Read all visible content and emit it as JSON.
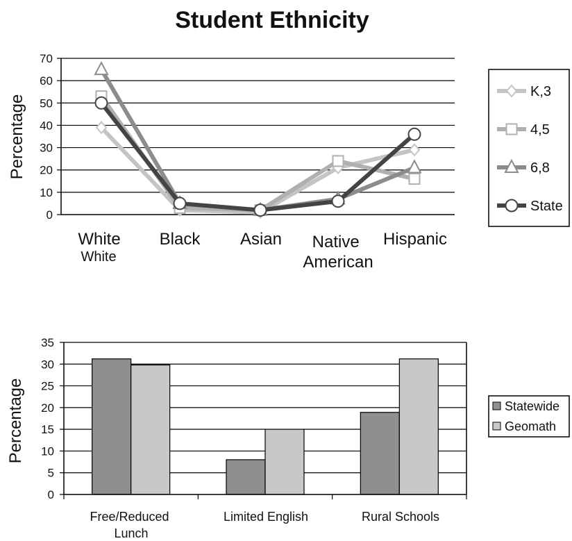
{
  "title": "Student Ethnicity",
  "chart_data": [
    {
      "type": "line",
      "ylabel": "Percentage",
      "ylim": [
        0,
        70
      ],
      "yticks": [
        "0",
        "10",
        "20",
        "30",
        "40",
        "50",
        "60",
        "70"
      ],
      "categories": [
        "White",
        "Black",
        "Asian",
        "Native American",
        "Hispanic"
      ],
      "category_extra_label": "White",
      "legend": "right",
      "grid": true,
      "series": [
        {
          "name": "K,3",
          "color": "#c4c4c4",
          "marker": "diamond",
          "values": [
            39,
            2,
            1,
            21,
            29
          ]
        },
        {
          "name": "4,5",
          "color": "#b0b0b0",
          "marker": "square",
          "values": [
            53,
            3,
            2,
            24,
            16
          ]
        },
        {
          "name": "6,8",
          "color": "#8c8c8c",
          "marker": "triangle",
          "values": [
            65,
            5,
            2,
            7,
            21
          ]
        },
        {
          "name": "State",
          "color": "#444444",
          "marker": "circle",
          "values": [
            50,
            5,
            2,
            6,
            36
          ]
        }
      ]
    },
    {
      "type": "bar",
      "ylabel": "Percentage",
      "ylim": [
        0,
        35
      ],
      "yticks": [
        "0",
        "5",
        "10",
        "15",
        "20",
        "25",
        "30",
        "35"
      ],
      "categories": [
        "Free/Reduced Lunch",
        "Limited English",
        "Rural Schools"
      ],
      "legend": "right",
      "grid": true,
      "series": [
        {
          "name": "Statewide",
          "color": "#8f8f8f",
          "values": [
            31.2,
            8,
            18.9
          ]
        },
        {
          "name": "Geomath",
          "color": "#c8c8c8",
          "values": [
            29.8,
            15,
            31.2
          ]
        }
      ]
    }
  ]
}
